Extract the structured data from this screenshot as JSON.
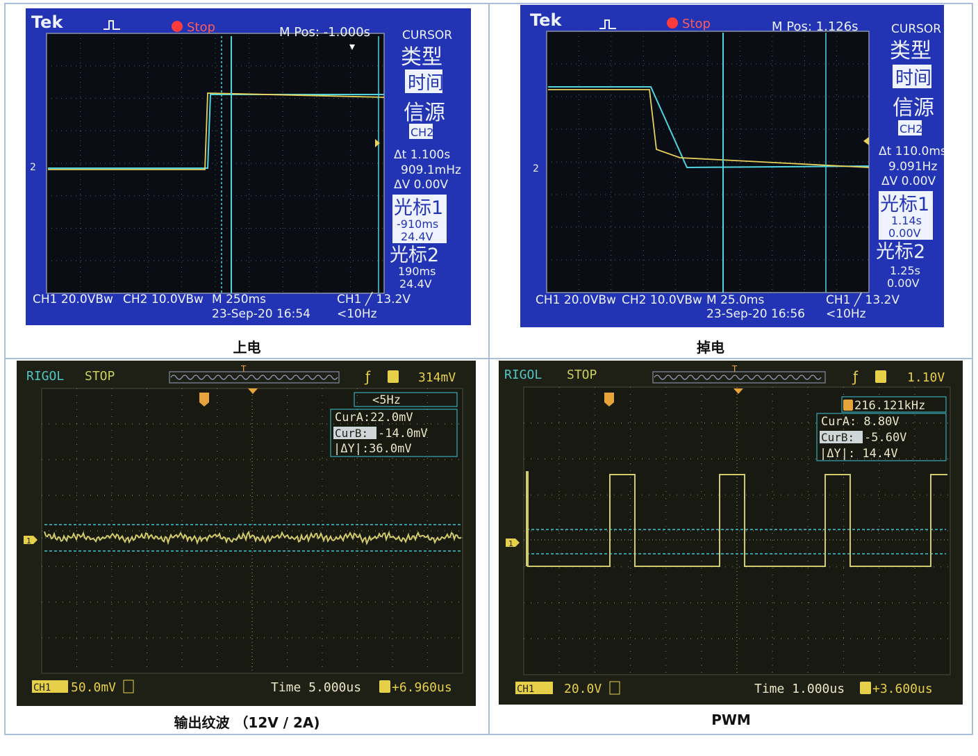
{
  "panels": [
    {
      "caption": "上电",
      "brand": "Tek",
      "status": "Stop",
      "mpos": "M Pos: -1.000s",
      "cursor_title": "CURSOR",
      "menu": {
        "type_label": "类型",
        "type_value": "时间",
        "source_label": "信源",
        "source_value": "CH2",
        "delta_t": "Δt 1.100s",
        "inv_delta_t": "909.1mHz",
        "delta_v": "ΔV 0.00V",
        "cursor1_label": "光标1",
        "cursor1_time": "-910ms",
        "cursor1_volt": "24.4V",
        "cursor2_label": "光标2",
        "cursor2_time": "190ms",
        "cursor2_volt": "24.4V"
      },
      "bottom": {
        "ch1": "CH1  20.0VBw",
        "ch2": "CH2  10.0VBw",
        "timebase": "M 250ms",
        "datetime": "23-Sep-20 16:54",
        "trigger": "CH1 ╱ 13.2V",
        "freq": "<10Hz"
      },
      "ch2_marker": "2"
    },
    {
      "caption": "掉电",
      "brand": "Tek",
      "status": "Stop",
      "mpos": "M Pos: 1.126s",
      "cursor_title": "CURSOR",
      "menu": {
        "type_label": "类型",
        "type_value": "时间",
        "source_label": "信源",
        "source_value": "CH2",
        "delta_t": "Δt 110.0ms",
        "inv_delta_t": "9.091Hz",
        "delta_v": "ΔV 0.00V",
        "cursor1_label": "光标1",
        "cursor1_time": "1.14s",
        "cursor1_volt": "0.00V",
        "cursor2_label": "光标2",
        "cursor2_time": "1.25s",
        "cursor2_volt": "0.00V"
      },
      "bottom": {
        "ch1": "CH1  20.0VBw",
        "ch2": "CH2  10.0VBw",
        "timebase": "M 25.0ms",
        "datetime": "23-Sep-20 16:56",
        "trigger": "CH1 ╱ 13.2V",
        "freq": "<10Hz"
      },
      "ch2_marker": "2"
    },
    {
      "caption": "输出纹波  （12V / 2A)",
      "brand": "RIGOL",
      "status": "STOP",
      "trig_level": "314mV",
      "trig_freq": "<5Hz",
      "cur_a": "CurA:22.0mV",
      "cur_b_label": "CurB:",
      "cur_b_value": "-14.0mV",
      "delta_y": "|ΔY|:36.0mV",
      "ch_badge": "CH1",
      "scale": "50.0mV",
      "time": "Time 5.000us",
      "offset": "+6.960us",
      "ch_marker": "1"
    },
    {
      "caption": "PWM",
      "brand": "RIGOL",
      "status": "STOP",
      "trig_level": "1.10V",
      "trig_freq": "216.121kHz",
      "cur_a": "CurA: 8.80V",
      "cur_b_label": "CurB:",
      "cur_b_value": "-5.60V",
      "delta_y": "|ΔY|: 14.4V",
      "ch_badge": "CH1",
      "scale": "20.0V",
      "time": "Time 1.000us",
      "offset": "+3.600us",
      "ch_marker": "1"
    }
  ],
  "colors": {
    "tek_bg": "#2233b4",
    "tek_grid": "#0a0d14",
    "tek_ch1": "#e8d15a",
    "tek_ch2": "#4fd4e0",
    "rigol_bg": "#1e1f15",
    "rigol_ch1": "#d2cb6c",
    "rigol_cursor": "#3cc8d8"
  }
}
